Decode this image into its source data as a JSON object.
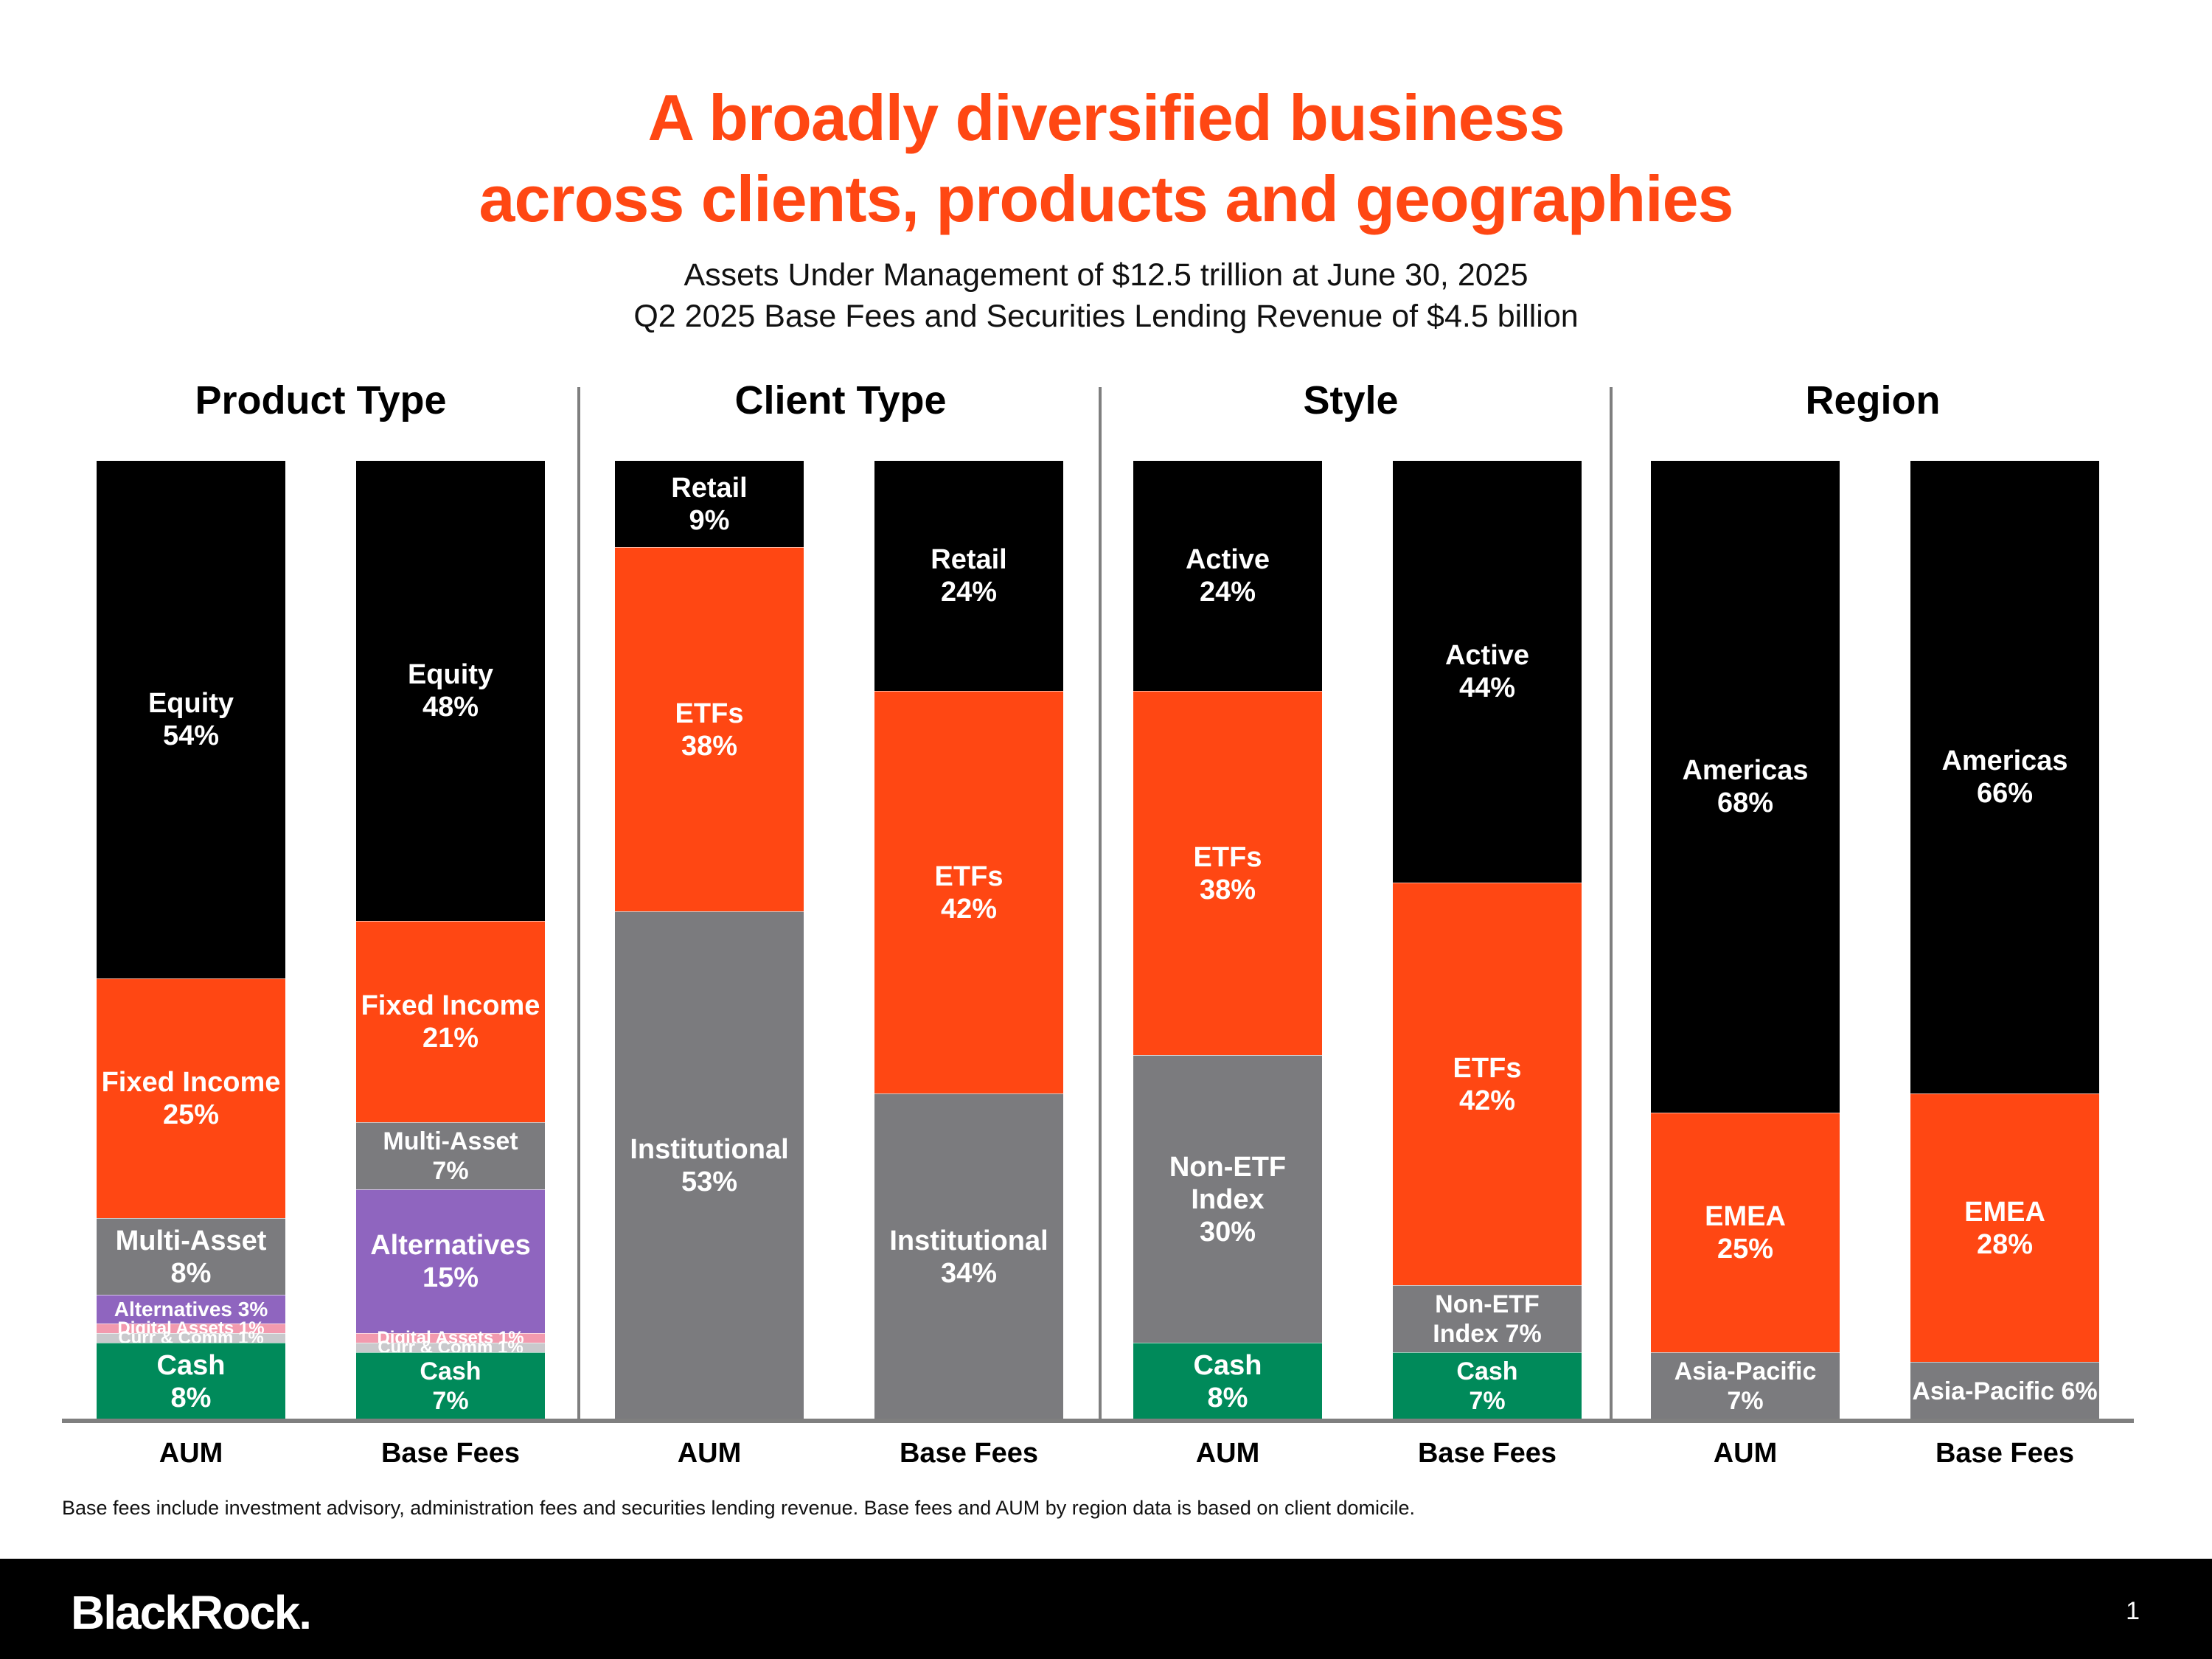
{
  "title": {
    "line1": "A broadly diversified business",
    "line2": "across clients, products and geographies"
  },
  "subtitle": {
    "line1": "Assets Under Management of $12.5 trillion at June 30, 2025",
    "line2": "Q2 2025 Base Fees and Securities Lending Revenue of $4.5 billion"
  },
  "colors": {
    "black": "#000000",
    "orange": "#ff4713",
    "gray": "#7b7b7e",
    "purple": "#8f65bf",
    "pink": "#f29aae",
    "lightgray": "#c9c9cc",
    "green": "#008a5a"
  },
  "sections": [
    "Product Type",
    "Client Type",
    "Style",
    "Region"
  ],
  "chart_data": {
    "type": "bar",
    "stacked": true,
    "unit": "%",
    "categories": [
      "AUM",
      "Base Fees",
      "AUM",
      "Base Fees",
      "AUM",
      "Base Fees",
      "AUM",
      "Base Fees"
    ],
    "bars": [
      {
        "section": "Product Type",
        "label": "AUM",
        "segments": [
          {
            "name": "Equity",
            "value": 54,
            "text": "Equity\n54%",
            "color": "black"
          },
          {
            "name": "Fixed Income",
            "value": 25,
            "text": "Fixed Income\n25%",
            "color": "orange"
          },
          {
            "name": "Multi-Asset",
            "value": 8,
            "text": "Multi-Asset\n8%",
            "color": "gray"
          },
          {
            "name": "Alternatives",
            "value": 3,
            "text": "Alternatives 3%",
            "color": "purple"
          },
          {
            "name": "Digital Assets",
            "value": 1,
            "text": "Digital Assets 1%",
            "color": "pink"
          },
          {
            "name": "Curr & Comm",
            "value": 1,
            "text": "Curr & Comm 1%",
            "color": "lightgray"
          },
          {
            "name": "Cash",
            "value": 8,
            "text": "Cash\n8%",
            "color": "green"
          }
        ]
      },
      {
        "section": "Product Type",
        "label": "Base Fees",
        "segments": [
          {
            "name": "Equity",
            "value": 48,
            "text": "Equity\n48%",
            "color": "black"
          },
          {
            "name": "Fixed Income",
            "value": 21,
            "text": "Fixed Income\n21%",
            "color": "orange"
          },
          {
            "name": "Multi-Asset",
            "value": 7,
            "text": "Multi-Asset\n7%",
            "color": "gray"
          },
          {
            "name": "Alternatives",
            "value": 15,
            "text": "Alternatives\n15%",
            "color": "purple"
          },
          {
            "name": "Digital Assets",
            "value": 1,
            "text": "Digital Assets 1%",
            "color": "pink"
          },
          {
            "name": "Curr & Comm",
            "value": 1,
            "text": "Curr & Comm 1%",
            "color": "lightgray"
          },
          {
            "name": "Cash",
            "value": 7,
            "text": "Cash\n7%",
            "color": "green"
          }
        ]
      },
      {
        "section": "Client Type",
        "label": "AUM",
        "segments": [
          {
            "name": "Retail",
            "value": 9,
            "text": "Retail\n9%",
            "color": "black"
          },
          {
            "name": "ETFs",
            "value": 38,
            "text": "ETFs\n38%",
            "color": "orange"
          },
          {
            "name": "Institutional",
            "value": 53,
            "text": "Institutional\n53%",
            "color": "gray"
          }
        ]
      },
      {
        "section": "Client Type",
        "label": "Base Fees",
        "segments": [
          {
            "name": "Retail",
            "value": 24,
            "text": "Retail\n24%",
            "color": "black"
          },
          {
            "name": "ETFs",
            "value": 42,
            "text": "ETFs\n42%",
            "color": "orange"
          },
          {
            "name": "Institutional",
            "value": 34,
            "text": "Institutional\n34%",
            "color": "gray"
          }
        ]
      },
      {
        "section": "Style",
        "label": "AUM",
        "segments": [
          {
            "name": "Active",
            "value": 24,
            "text": "Active\n24%",
            "color": "black"
          },
          {
            "name": "ETFs",
            "value": 38,
            "text": "ETFs\n38%",
            "color": "orange"
          },
          {
            "name": "Non-ETF Index",
            "value": 30,
            "text": "Non-ETF\nIndex\n30%",
            "color": "gray"
          },
          {
            "name": "Cash",
            "value": 8,
            "text": "Cash\n8%",
            "color": "green"
          }
        ]
      },
      {
        "section": "Style",
        "label": "Base Fees",
        "segments": [
          {
            "name": "Active",
            "value": 44,
            "text": "Active\n44%",
            "color": "black"
          },
          {
            "name": "ETFs",
            "value": 42,
            "text": "ETFs\n42%",
            "color": "orange"
          },
          {
            "name": "Non-ETF Index",
            "value": 7,
            "text": "Non-ETF\nIndex 7%",
            "color": "gray"
          },
          {
            "name": "Cash",
            "value": 7,
            "text": "Cash\n7%",
            "color": "green"
          }
        ]
      },
      {
        "section": "Region",
        "label": "AUM",
        "segments": [
          {
            "name": "Americas",
            "value": 68,
            "text": "Americas\n68%",
            "color": "black"
          },
          {
            "name": "EMEA",
            "value": 25,
            "text": "EMEA\n25%",
            "color": "orange"
          },
          {
            "name": "Asia-Pacific",
            "value": 7,
            "text": "Asia-Pacific\n7%",
            "color": "gray"
          }
        ]
      },
      {
        "section": "Region",
        "label": "Base Fees",
        "segments": [
          {
            "name": "Americas",
            "value": 66,
            "text": "Americas\n66%",
            "color": "black"
          },
          {
            "name": "EMEA",
            "value": 28,
            "text": "EMEA\n28%",
            "color": "orange"
          },
          {
            "name": "Asia-Pacific",
            "value": 6,
            "text": "Asia-Pacific 6%",
            "color": "gray"
          }
        ]
      }
    ]
  },
  "footnote": "Base fees include investment advisory, administration fees and securities lending revenue. Base fees and AUM by region data is based on client domicile.",
  "footer": {
    "logo": "BlackRock.",
    "page_number": "1"
  }
}
